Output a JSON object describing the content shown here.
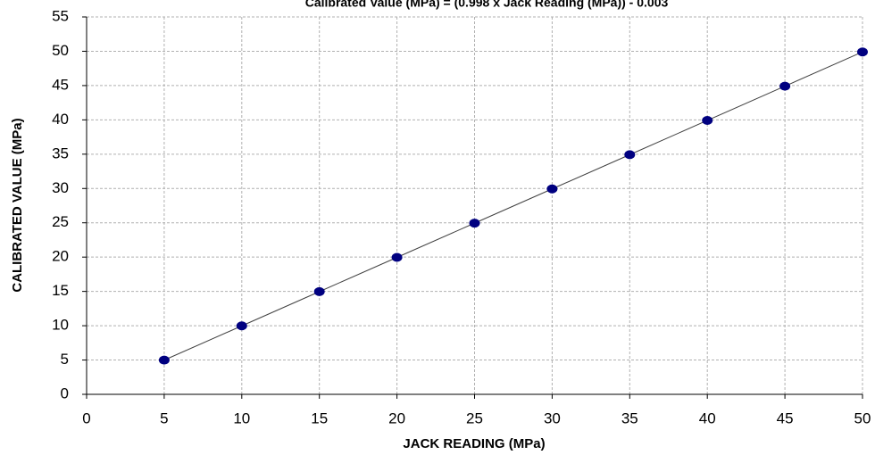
{
  "chart_data": {
    "type": "scatter",
    "title": "Calibrated Value (MPa) = (0.998 x  Jack Reading (MPa)) - 0.003",
    "x_label": "JACK READING (MPa)",
    "y_label": "CALIBRATED VALUE  (MPa)",
    "x": [
      5,
      10,
      15,
      20,
      25,
      30,
      35,
      40,
      45,
      50
    ],
    "values": [
      4.99,
      9.98,
      14.97,
      19.96,
      24.95,
      29.94,
      34.93,
      39.92,
      44.91,
      49.9
    ],
    "color": "#000080",
    "line_color": "#404040",
    "trendline": true,
    "xlim": [
      0,
      50
    ],
    "xticks": [
      0,
      5,
      10,
      15,
      20,
      25,
      30,
      35,
      40,
      45,
      50
    ],
    "ylim": [
      0,
      55
    ],
    "yticks": [
      0,
      5,
      10,
      15,
      20,
      25,
      30,
      35,
      40,
      45,
      50,
      55
    ],
    "grid": true
  }
}
